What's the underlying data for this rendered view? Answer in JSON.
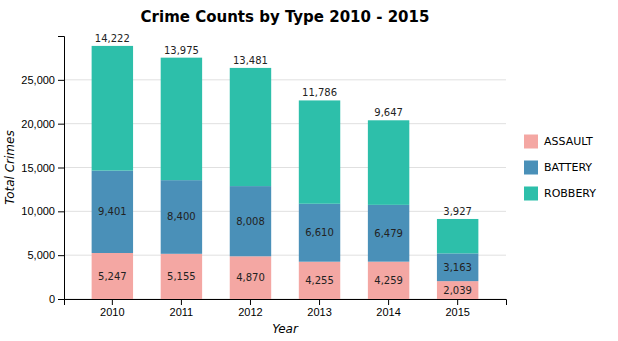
{
  "chart_data": {
    "type": "bar",
    "title": "Crime Counts by Type 2010 - 2015",
    "xlabel": "Year",
    "ylabel": "Total Crimes",
    "categories": [
      "2010",
      "2011",
      "2012",
      "2013",
      "2014",
      "2015"
    ],
    "series": [
      {
        "name": "ASSAULT",
        "color": "#f4a7a3",
        "values": [
          5247,
          5155,
          4870,
          4255,
          4259,
          2039
        ],
        "value_labels": [
          "5,247",
          "5,155",
          "4,870",
          "4,255",
          "4,259",
          "2,039"
        ]
      },
      {
        "name": "BATTERY",
        "color": "#4a90b8",
        "values": [
          9401,
          8400,
          8008,
          6610,
          6479,
          3163
        ],
        "value_labels": [
          "9,401",
          "8,400",
          "8,008",
          "6,610",
          "6,479",
          "3,163"
        ]
      },
      {
        "name": "ROBBERY",
        "color": "#2dbfaa",
        "values": [
          14222,
          13975,
          13481,
          11786,
          9647,
          3927
        ],
        "value_labels": [
          "14,222",
          "13,975",
          "13,481",
          "11,786",
          "9,647",
          "3,927"
        ]
      }
    ],
    "ylim": [
      0,
      30000
    ],
    "yticks": [
      0,
      {
        "value": 5000,
        "label": "5,000"
      },
      {
        "value": 10000,
        "label": "10,000"
      },
      {
        "value": 15000,
        "label": "15,000"
      },
      {
        "value": 20000,
        "label": "20,000"
      },
      {
        "value": 25000,
        "label": "25,000"
      }
    ],
    "grid": true,
    "legend": "right",
    "stacked": true,
    "data_labels": true
  }
}
